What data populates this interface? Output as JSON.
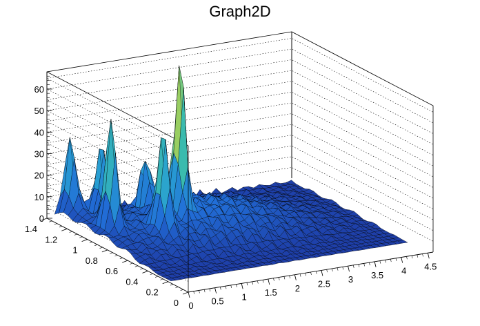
{
  "chart_data": {
    "type": "surface3d",
    "title": "Graph2D",
    "xlabel": "",
    "ylabel": "",
    "zlabel": "",
    "xlim": [
      0,
      4.6
    ],
    "ylim": [
      0,
      1.4
    ],
    "zlim": [
      0,
      68
    ],
    "x_ticks": [
      0,
      0.5,
      1,
      1.5,
      2,
      2.5,
      3,
      3.5,
      4,
      4.5
    ],
    "x_tick_labels": [
      "0",
      "0.5",
      "1",
      "1.5",
      "2",
      "2.5",
      "3",
      "3.5",
      "4",
      "4.5"
    ],
    "y_ticks": [
      0,
      0.2,
      0.4,
      0.6,
      0.8,
      1,
      1.2,
      1.4
    ],
    "y_tick_labels": [
      "0",
      "0.2",
      "0.4",
      "0.6",
      "0.8",
      "1",
      "1.2",
      "1.4"
    ],
    "z_ticks": [
      0,
      10,
      20,
      30,
      40,
      50,
      60
    ],
    "z_tick_labels": [
      "0",
      "10",
      "20",
      "30",
      "40",
      "50",
      "60"
    ],
    "grid": true,
    "palette": "kBird",
    "colors": {
      "low": "#1e3ea8",
      "mid": "#2aa7c9",
      "high": "#f9e22a"
    },
    "peaks": [
      {
        "x": 0.35,
        "y": 0.95,
        "z": 50
      },
      {
        "x": 0.55,
        "y": 1.15,
        "z": 30
      },
      {
        "x": 0.25,
        "y": 1.3,
        "z": 33
      },
      {
        "x": 0.95,
        "y": 0.75,
        "z": 45
      },
      {
        "x": 1.45,
        "y": 0.85,
        "z": 68
      },
      {
        "x": 1.2,
        "y": 1.05,
        "z": 25
      }
    ]
  }
}
